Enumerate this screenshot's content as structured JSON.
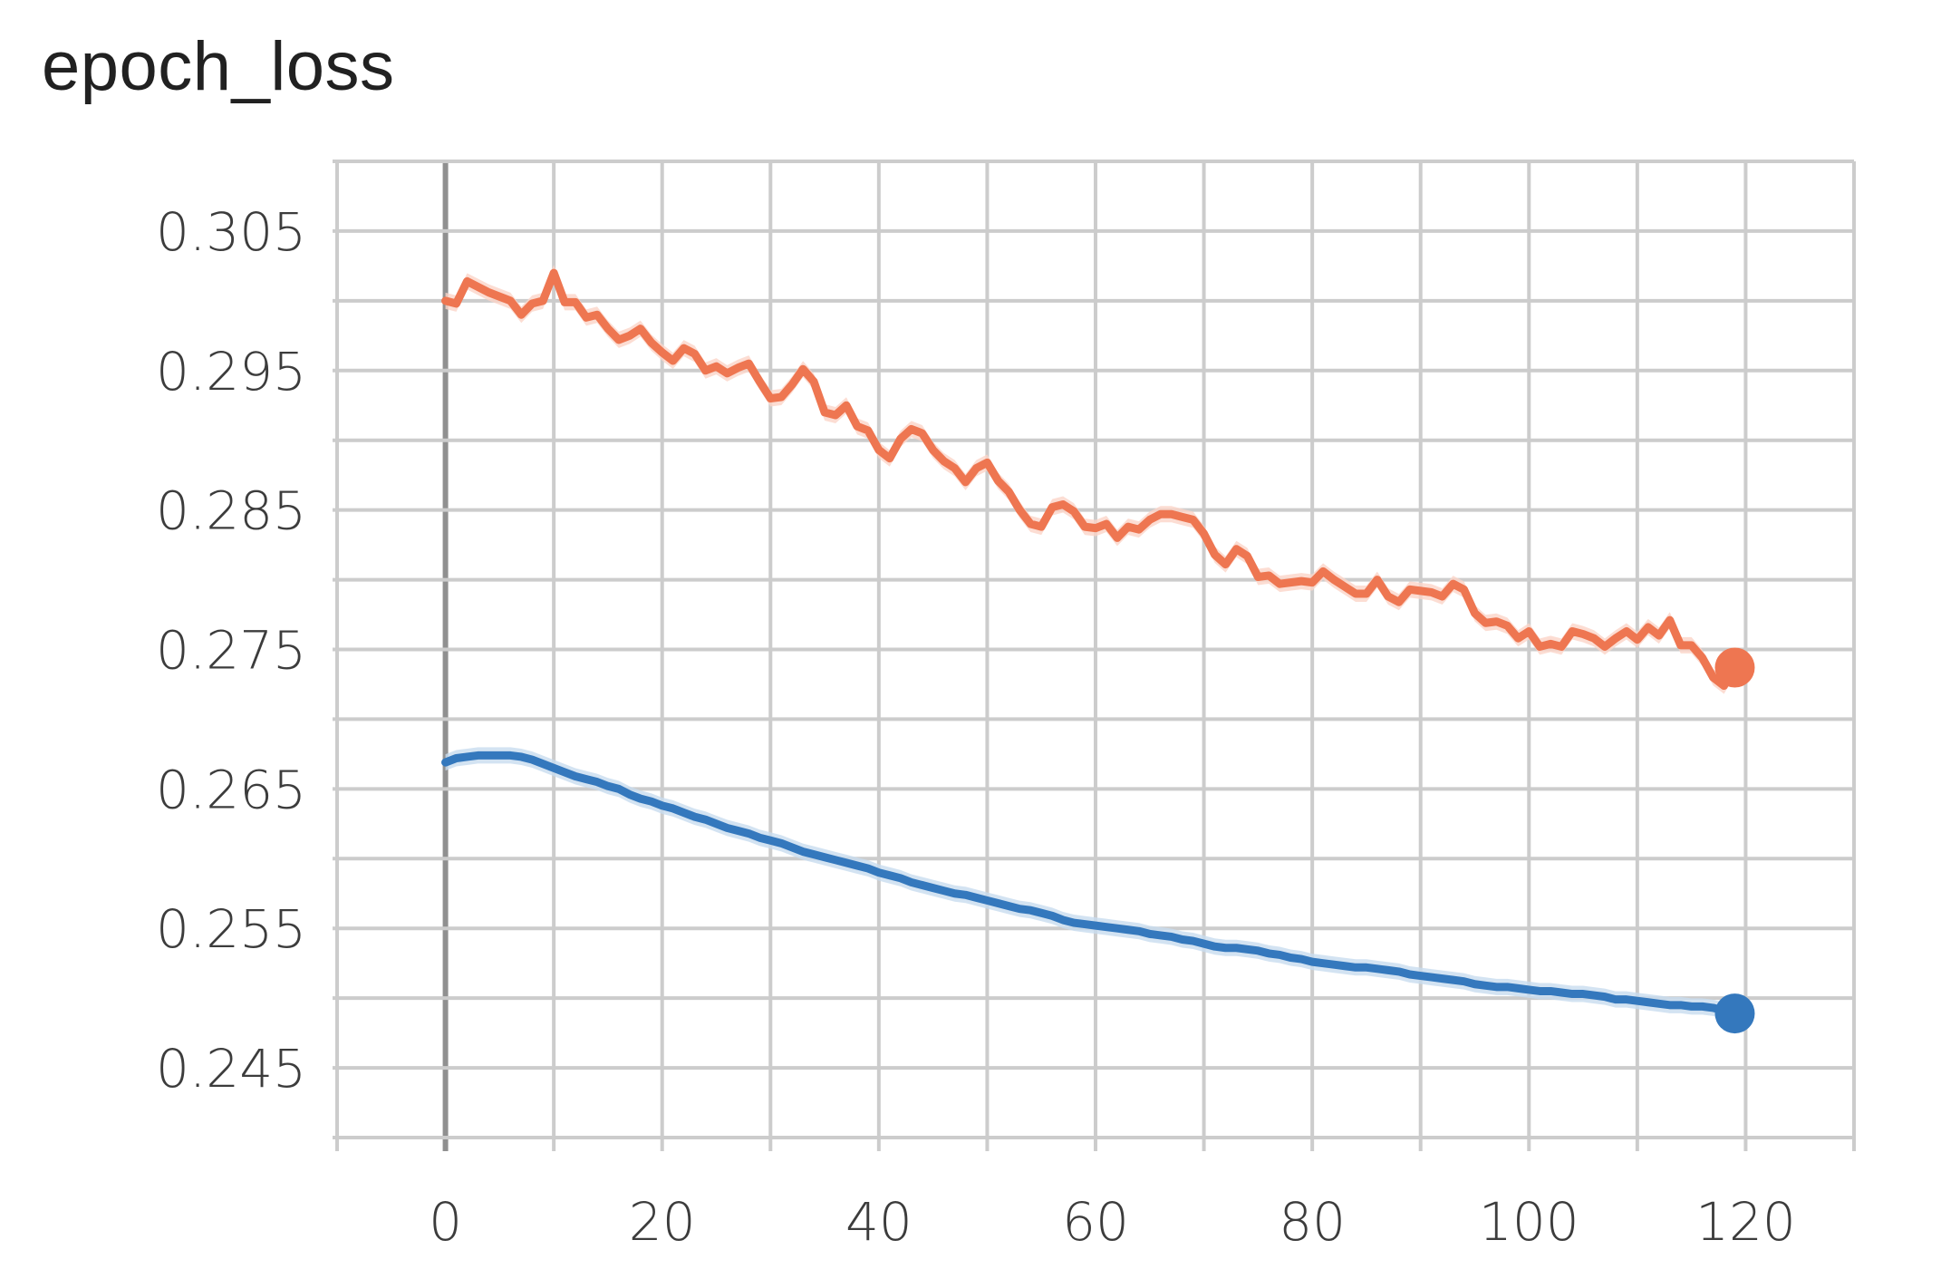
{
  "chart_data": {
    "type": "line",
    "title": "epoch_loss",
    "xlabel": "",
    "ylabel": "",
    "xlim": [
      -10,
      130
    ],
    "ylim": [
      0.24,
      0.31
    ],
    "x_ticks": [
      0,
      20,
      40,
      60,
      80,
      100,
      120
    ],
    "x_tick_labels": [
      "0",
      "20",
      "40",
      "60",
      "80",
      "100",
      "120"
    ],
    "y_ticks": [
      0.245,
      0.255,
      0.265,
      0.275,
      0.285,
      0.295,
      0.305
    ],
    "y_tick_labels": [
      "0.245",
      "0.255",
      "0.265",
      "0.275",
      "0.285",
      "0.295",
      "0.305"
    ],
    "grid": true,
    "legend": "none",
    "series": [
      {
        "color": "#ee7651",
        "band_color": "#fbd5c8",
        "end_marker": true,
        "x": [
          0,
          1,
          2,
          3,
          4,
          5,
          6,
          7,
          8,
          9,
          10,
          11,
          12,
          13,
          14,
          15,
          16,
          17,
          18,
          19,
          20,
          21,
          22,
          23,
          24,
          25,
          26,
          27,
          28,
          29,
          30,
          31,
          32,
          33,
          34,
          35,
          36,
          37,
          38,
          39,
          40,
          41,
          42,
          43,
          44,
          45,
          46,
          47,
          48,
          49,
          50,
          51,
          52,
          53,
          54,
          55,
          56,
          57,
          58,
          59,
          60,
          61,
          62,
          63,
          64,
          65,
          66,
          67,
          68,
          69,
          70,
          71,
          72,
          73,
          74,
          75,
          76,
          77,
          78,
          79,
          80,
          81,
          82,
          83,
          84,
          85,
          86,
          87,
          88,
          89,
          90,
          91,
          92,
          93,
          94,
          95,
          96,
          97,
          98,
          99,
          100,
          101,
          102,
          103,
          104,
          105,
          106,
          107,
          108,
          109,
          110,
          111,
          112,
          113,
          114,
          115,
          116,
          117,
          118,
          119
        ],
        "y": [
          0.3,
          0.2998,
          0.3014,
          0.301,
          0.3006,
          0.3003,
          0.3,
          0.299,
          0.2998,
          0.3,
          0.302,
          0.2999,
          0.2999,
          0.2988,
          0.299,
          0.298,
          0.2972,
          0.2975,
          0.298,
          0.297,
          0.2963,
          0.2957,
          0.2966,
          0.2962,
          0.295,
          0.2953,
          0.2948,
          0.2952,
          0.2955,
          0.2942,
          0.293,
          0.2931,
          0.294,
          0.2951,
          0.2942,
          0.292,
          0.2918,
          0.2925,
          0.291,
          0.2907,
          0.2893,
          0.2887,
          0.2901,
          0.2908,
          0.2905,
          0.2893,
          0.2885,
          0.288,
          0.287,
          0.288,
          0.2884,
          0.2871,
          0.2863,
          0.285,
          0.284,
          0.2838,
          0.2852,
          0.2854,
          0.2849,
          0.2838,
          0.2837,
          0.284,
          0.283,
          0.2838,
          0.2836,
          0.2843,
          0.2847,
          0.2847,
          0.2845,
          0.2843,
          0.2833,
          0.2818,
          0.2811,
          0.2822,
          0.2817,
          0.2802,
          0.2803,
          0.2797,
          0.2798,
          0.2799,
          0.2798,
          0.2806,
          0.28,
          0.2795,
          0.279,
          0.279,
          0.28,
          0.2788,
          0.2784,
          0.2793,
          0.2792,
          0.2791,
          0.2788,
          0.2797,
          0.2793,
          0.2776,
          0.2769,
          0.277,
          0.2767,
          0.2758,
          0.2763,
          0.2752,
          0.2754,
          0.2752,
          0.2763,
          0.2761,
          0.2758,
          0.2752,
          0.2758,
          0.2763,
          0.2757,
          0.2766,
          0.276,
          0.2771,
          0.2753,
          0.2753,
          0.2744,
          0.273,
          0.2724,
          0.2737
        ]
      },
      {
        "color": "#3478bd",
        "band_color": "#c8dcef",
        "end_marker": true,
        "x": [
          0,
          1,
          2,
          3,
          4,
          5,
          6,
          7,
          8,
          9,
          10,
          11,
          12,
          13,
          14,
          15,
          16,
          17,
          18,
          19,
          20,
          21,
          22,
          23,
          24,
          25,
          26,
          27,
          28,
          29,
          30,
          31,
          32,
          33,
          34,
          35,
          36,
          37,
          38,
          39,
          40,
          41,
          42,
          43,
          44,
          45,
          46,
          47,
          48,
          49,
          50,
          51,
          52,
          53,
          54,
          55,
          56,
          57,
          58,
          59,
          60,
          61,
          62,
          63,
          64,
          65,
          66,
          67,
          68,
          69,
          70,
          71,
          72,
          73,
          74,
          75,
          76,
          77,
          78,
          79,
          80,
          81,
          82,
          83,
          84,
          85,
          86,
          87,
          88,
          89,
          90,
          91,
          92,
          93,
          94,
          95,
          96,
          97,
          98,
          99,
          100,
          101,
          102,
          103,
          104,
          105,
          106,
          107,
          108,
          109,
          110,
          111,
          112,
          113,
          114,
          115,
          116,
          117,
          118,
          119
        ],
        "y": [
          0.2669,
          0.2672,
          0.2673,
          0.2674,
          0.2674,
          0.2674,
          0.2674,
          0.2673,
          0.2671,
          0.2668,
          0.2665,
          0.2662,
          0.2659,
          0.2657,
          0.2655,
          0.2652,
          0.265,
          0.2646,
          0.2643,
          0.2641,
          0.2638,
          0.2636,
          0.2633,
          0.263,
          0.2628,
          0.2625,
          0.2622,
          0.262,
          0.2618,
          0.2615,
          0.2613,
          0.2611,
          0.2608,
          0.2605,
          0.2603,
          0.2601,
          0.2599,
          0.2597,
          0.2595,
          0.2593,
          0.259,
          0.2588,
          0.2586,
          0.2583,
          0.2581,
          0.2579,
          0.2577,
          0.2575,
          0.2574,
          0.2572,
          0.257,
          0.2568,
          0.2566,
          0.2564,
          0.2563,
          0.2561,
          0.2559,
          0.2556,
          0.2554,
          0.2553,
          0.2552,
          0.2551,
          0.255,
          0.2549,
          0.2548,
          0.2546,
          0.2545,
          0.2544,
          0.2542,
          0.2541,
          0.2539,
          0.2537,
          0.2536,
          0.2536,
          0.2535,
          0.2534,
          0.2532,
          0.2531,
          0.2529,
          0.2528,
          0.2526,
          0.2525,
          0.2524,
          0.2523,
          0.2522,
          0.2522,
          0.2521,
          0.252,
          0.2519,
          0.2517,
          0.2516,
          0.2515,
          0.2514,
          0.2513,
          0.2512,
          0.251,
          0.2509,
          0.2508,
          0.2508,
          0.2507,
          0.2506,
          0.2505,
          0.2505,
          0.2504,
          0.2503,
          0.2503,
          0.2502,
          0.2501,
          0.2499,
          0.2499,
          0.2498,
          0.2497,
          0.2496,
          0.2495,
          0.2495,
          0.2494,
          0.2494,
          0.2493,
          0.2491,
          0.2489
        ]
      }
    ]
  }
}
